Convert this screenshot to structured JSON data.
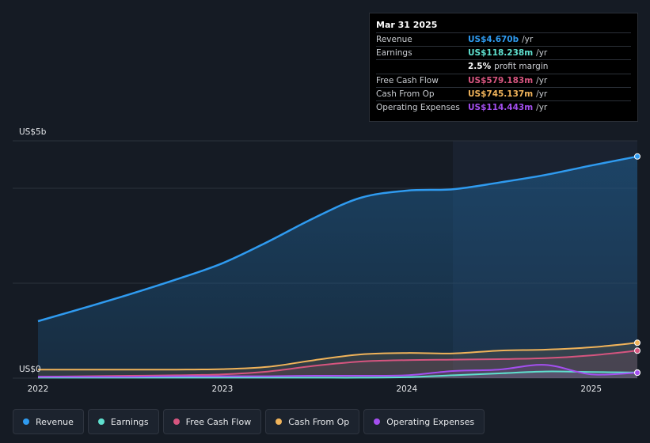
{
  "tooltip": {
    "date": "Mar 31 2025",
    "rows": [
      {
        "label": "Revenue",
        "value": "US$4.670b",
        "unit": "/yr",
        "color": "#2f9bf0"
      },
      {
        "label": "Earnings",
        "value": "US$118.238m",
        "unit": "/yr",
        "color": "#5fe0cf"
      },
      {
        "label": "",
        "value": "2.5%",
        "unit": "profit margin",
        "color": "#ffffff"
      },
      {
        "label": "Free Cash Flow",
        "value": "US$579.183m",
        "unit": "/yr",
        "color": "#d6557f"
      },
      {
        "label": "Cash From Op",
        "value": "US$745.137m",
        "unit": "/yr",
        "color": "#f0b35a"
      },
      {
        "label": "Operating Expenses",
        "value": "US$114.443m",
        "unit": "/yr",
        "color": "#a44ff0"
      }
    ]
  },
  "legend": [
    {
      "label": "Revenue",
      "color": "#2f9bf0"
    },
    {
      "label": "Earnings",
      "color": "#5fe0cf"
    },
    {
      "label": "Free Cash Flow",
      "color": "#d6557f"
    },
    {
      "label": "Cash From Op",
      "color": "#f0b35a"
    },
    {
      "label": "Operating Expenses",
      "color": "#a44ff0"
    }
  ],
  "chart_data": {
    "type": "area",
    "y_top_label": "US$5b",
    "y_bottom_label": "US$0",
    "ylim": [
      0,
      5
    ],
    "xlim": [
      2022.0,
      2025.25
    ],
    "x_ticks": [
      {
        "value": 2022,
        "label": "2022"
      },
      {
        "value": 2023,
        "label": "2023"
      },
      {
        "value": 2024,
        "label": "2024"
      },
      {
        "value": 2025,
        "label": "2025"
      }
    ],
    "forecast_start": 2024.25,
    "series": [
      {
        "name": "Revenue",
        "color": "#2f9bf0",
        "x": [
          2022.0,
          2022.25,
          2022.5,
          2022.75,
          2023.0,
          2023.25,
          2023.5,
          2023.75,
          2024.0,
          2024.25,
          2024.5,
          2024.75,
          2025.0,
          2025.25
        ],
        "y": [
          1.2,
          1.48,
          1.77,
          2.08,
          2.42,
          2.88,
          3.38,
          3.8,
          3.95,
          3.98,
          4.12,
          4.28,
          4.48,
          4.67
        ]
      },
      {
        "name": "Earnings",
        "color": "#5fe0cf",
        "x": [
          2022.0,
          2022.25,
          2022.5,
          2022.75,
          2023.0,
          2023.25,
          2023.5,
          2023.75,
          2024.0,
          2024.25,
          2024.5,
          2024.75,
          2025.0,
          2025.25
        ],
        "y": [
          0.01,
          0.01,
          0.01,
          0.01,
          0.01,
          0.01,
          0.01,
          0.01,
          0.02,
          0.06,
          0.1,
          0.14,
          0.13,
          0.118
        ]
      },
      {
        "name": "Free Cash Flow",
        "color": "#d6557f",
        "x": [
          2022.0,
          2022.25,
          2022.5,
          2022.75,
          2023.0,
          2023.25,
          2023.5,
          2023.75,
          2024.0,
          2024.25,
          2024.5,
          2024.75,
          2025.0,
          2025.25
        ],
        "y": [
          0.03,
          0.04,
          0.05,
          0.06,
          0.08,
          0.14,
          0.26,
          0.35,
          0.38,
          0.39,
          0.4,
          0.42,
          0.48,
          0.579
        ]
      },
      {
        "name": "Cash From Op",
        "color": "#f0b35a",
        "x": [
          2022.0,
          2022.25,
          2022.5,
          2022.75,
          2023.0,
          2023.25,
          2023.5,
          2023.75,
          2024.0,
          2024.25,
          2024.5,
          2024.75,
          2025.0,
          2025.25
        ],
        "y": [
          0.18,
          0.18,
          0.18,
          0.18,
          0.19,
          0.24,
          0.38,
          0.5,
          0.53,
          0.52,
          0.58,
          0.6,
          0.65,
          0.745
        ]
      },
      {
        "name": "Operating Expenses",
        "color": "#a44ff0",
        "x": [
          2022.0,
          2022.25,
          2022.5,
          2022.75,
          2023.0,
          2023.25,
          2023.5,
          2023.75,
          2024.0,
          2024.25,
          2024.5,
          2024.75,
          2025.0,
          2025.25
        ],
        "y": [
          0.03,
          0.03,
          0.03,
          0.04,
          0.04,
          0.04,
          0.05,
          0.05,
          0.06,
          0.15,
          0.18,
          0.28,
          0.08,
          0.114
        ]
      }
    ]
  }
}
